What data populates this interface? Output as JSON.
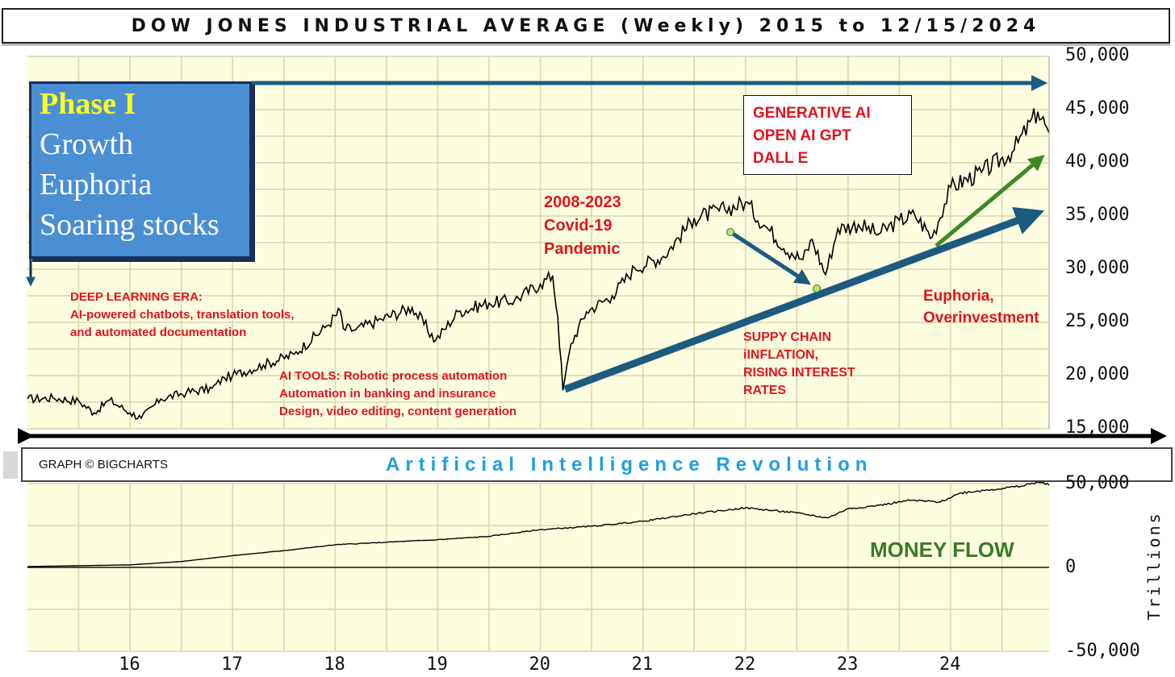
{
  "title": "DOW JONES INDUSTRIAL AVERAGE (Weekly) 2015 to 12/15/2024",
  "credit": "GRAPH © BIGCHARTS",
  "banner": "Artificial Intelligence Revolution",
  "colors": {
    "chart_bg": "#fdfde0",
    "grid": "#d6d9a8",
    "annotation_red": "#e0141e",
    "arrow_blue": "#1d5a80",
    "arrow_green": "#3f8a27",
    "banner_blue": "#1ea0e0"
  },
  "phase_box": {
    "heading": "Phase I",
    "lines": [
      "Growth",
      "Euphoria",
      "Soaring stocks"
    ]
  },
  "annotations": {
    "deep_learning": {
      "title": "DEEP LEARNING ERA:",
      "lines": [
        "AI-powered chatbots, translation tools,",
        "and automated documentation"
      ]
    },
    "ai_tools": {
      "lines": [
        "AI TOOLS: Robotic process automation",
        "Automation in banking and insurance",
        "Design, video editing, content generation"
      ]
    },
    "covid": {
      "lines": [
        "2008-2023",
        "Covid-19",
        "Pandemic"
      ]
    },
    "generative": {
      "lines": [
        "GENERATIVE AI",
        "OPEN AI GPT",
        "DALL E"
      ]
    },
    "supply": {
      "lines": [
        "SUPPY CHAIN",
        "iINFLATION,",
        "RISING  INTEREST",
        "RATES"
      ]
    },
    "euphoria": {
      "lines": [
        "Euphoria,",
        "Overinvestment"
      ]
    },
    "money_flow": "MONEY FLOW"
  },
  "chart_data": [
    {
      "type": "line",
      "title": "DOW JONES INDUSTRIAL AVERAGE (Weekly) 2015 to 12/15/2024",
      "x_tick_labels": [
        "16",
        "17",
        "18",
        "19",
        "20",
        "21",
        "22",
        "23",
        "24"
      ],
      "y_tick_labels": [
        "15,000",
        "20,000",
        "25,000",
        "30,000",
        "35,000",
        "40,000",
        "45,000",
        "50,000"
      ],
      "ylim": [
        15000,
        50000
      ],
      "xlim": [
        2015.0,
        2024.96
      ],
      "grid": true,
      "series": [
        {
          "x": [
            2015.0,
            2015.25,
            2015.5,
            2015.65,
            2015.8,
            2016.0,
            2016.11,
            2016.3,
            2016.55,
            2016.8,
            2016.92,
            2017.0,
            2017.3,
            2017.6,
            2017.9,
            2018.05,
            2018.08,
            2018.2,
            2018.45,
            2018.75,
            2018.98,
            2019.2,
            2019.5,
            2019.75,
            2020.0,
            2020.12,
            2020.17,
            2020.22,
            2020.3,
            2020.45,
            2020.7,
            2020.92,
            2021.2,
            2021.5,
            2021.8,
            2022.0,
            2022.2,
            2022.45,
            2022.56,
            2022.65,
            2022.78,
            2022.9,
            2023.1,
            2023.3,
            2023.5,
            2023.65,
            2023.82,
            2024.0,
            2024.3,
            2024.6,
            2024.85,
            2024.92,
            2024.96
          ],
          "values": [
            17800,
            17900,
            17600,
            16500,
            17700,
            16500,
            16000,
            17800,
            18400,
            18800,
            19800,
            20000,
            21000,
            22000,
            24500,
            26100,
            24400,
            24300,
            25300,
            26400,
            23300,
            26000,
            26800,
            27100,
            28600,
            29400,
            25500,
            18600,
            23000,
            26000,
            27500,
            30100,
            31200,
            34800,
            35600,
            36300,
            34000,
            31500,
            30900,
            32800,
            29500,
            33800,
            34200,
            33300,
            34600,
            35100,
            33000,
            37700,
            39100,
            41000,
            44800,
            43600,
            42800
          ]
        }
      ]
    },
    {
      "type": "line",
      "title": "MONEY FLOW",
      "ylabel": "Trillions",
      "y_tick_labels": [
        "50,000",
        "0",
        "-50,000"
      ],
      "ylim": [
        -50000,
        50000
      ],
      "xlim": [
        2015.0,
        2024.96
      ],
      "series": [
        {
          "x": [
            2015.0,
            2016.0,
            2016.5,
            2017.0,
            2017.5,
            2018.0,
            2018.5,
            2019.0,
            2019.5,
            2020.0,
            2020.5,
            2021.0,
            2021.5,
            2022.0,
            2022.5,
            2022.8,
            2023.0,
            2023.3,
            2023.6,
            2023.9,
            2024.1,
            2024.4,
            2024.7,
            2024.85,
            2024.96
          ],
          "values": [
            500,
            1500,
            3500,
            7000,
            10000,
            13500,
            15000,
            16500,
            18500,
            22500,
            24500,
            27500,
            32000,
            35500,
            32500,
            29500,
            35000,
            37000,
            40000,
            39000,
            44500,
            46500,
            48500,
            51000,
            49000
          ]
        }
      ]
    }
  ]
}
